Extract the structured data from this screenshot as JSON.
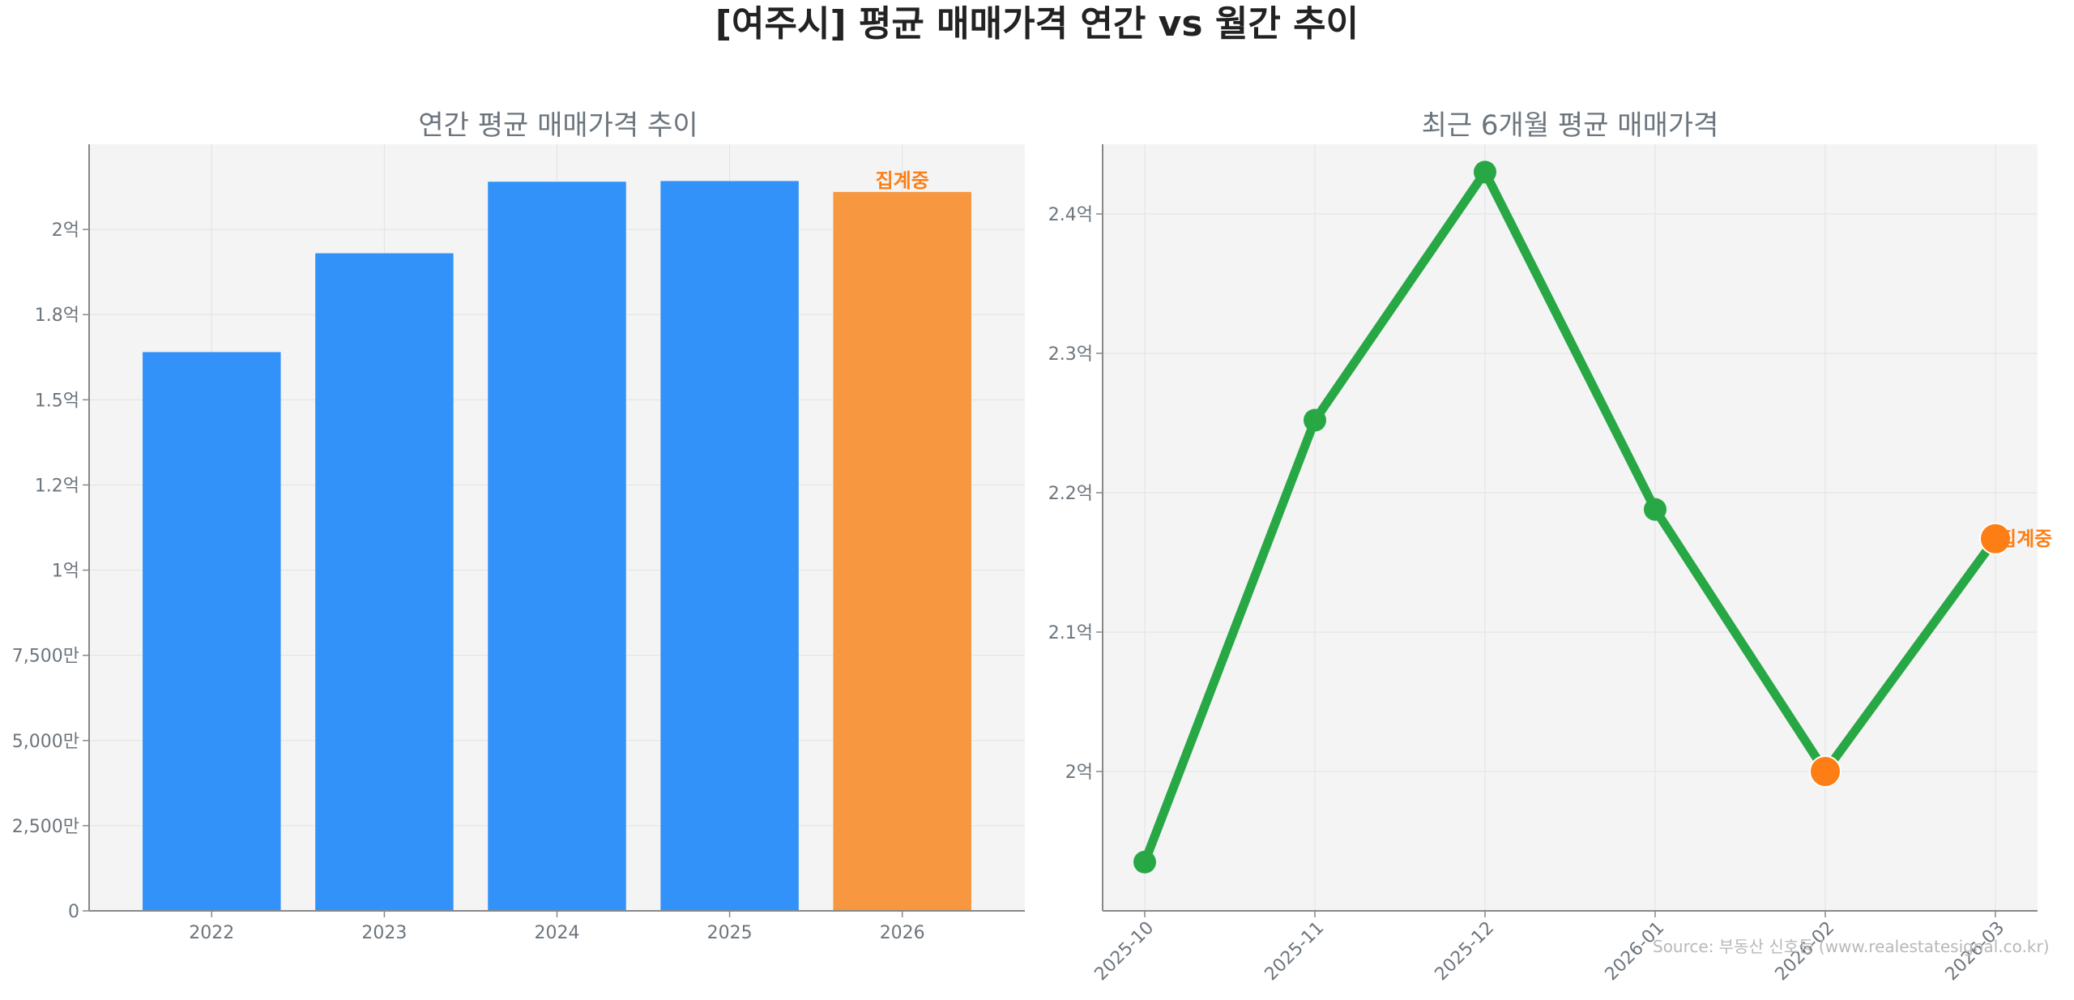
{
  "page": {
    "title": "[여주시] 평균 매매가격 연간 vs 월간 추이",
    "source": "Source: 부동산 신호등 (www.realestatesignal.co.kr)"
  },
  "colors": {
    "bar": "#3292fa",
    "bar_partial": "#f7973f",
    "line": "#28a745",
    "highlight": "#fd7e14",
    "annotation": "#fd7e14",
    "axis_text": "#6c757d",
    "panel_bg": "#f4f4f4",
    "grid": "#e2e2e2"
  },
  "chart_data": [
    {
      "type": "bar",
      "title": "연간 평균 매매가격 추이",
      "categories": [
        "2022",
        "2023",
        "2024",
        "2025",
        "2026"
      ],
      "values": [
        164000000,
        193000000,
        214000000,
        214200000,
        211000000
      ],
      "ylim": [
        0,
        225000000
      ],
      "yticks": [
        {
          "value": 0,
          "label": "0"
        },
        {
          "value": 25000000,
          "label": "2,500만"
        },
        {
          "value": 50000000,
          "label": "5,000만"
        },
        {
          "value": 75000000,
          "label": "7,500만"
        },
        {
          "value": 100000000,
          "label": "1억"
        },
        {
          "value": 125000000,
          "label": "1.2억"
        },
        {
          "value": 150000000,
          "label": "1.5억"
        },
        {
          "value": 175000000,
          "label": "1.8억"
        },
        {
          "value": 200000000,
          "label": "2억"
        }
      ],
      "highlight_index": 4,
      "annotation": "집계중",
      "grid": true
    },
    {
      "type": "line",
      "title": "최근 6개월 평균 매매가격",
      "x": [
        "2025-10",
        "2025-11",
        "2025-12",
        "2026-01",
        "2026-02",
        "2026-03"
      ],
      "values": [
        193500000,
        225200000,
        243000000,
        218800000,
        200000000,
        216700000
      ],
      "ylim": [
        190000000,
        245000000
      ],
      "yticks": [
        {
          "value": 200000000,
          "label": "2억"
        },
        {
          "value": 210000000,
          "label": "2.1억"
        },
        {
          "value": 220000000,
          "label": "2.2억"
        },
        {
          "value": 230000000,
          "label": "2.3억"
        },
        {
          "value": 240000000,
          "label": "2.4억"
        }
      ],
      "highlight_indices": [
        4,
        5
      ],
      "annotation": "집계중",
      "annotation_index": 5,
      "grid": true
    }
  ]
}
